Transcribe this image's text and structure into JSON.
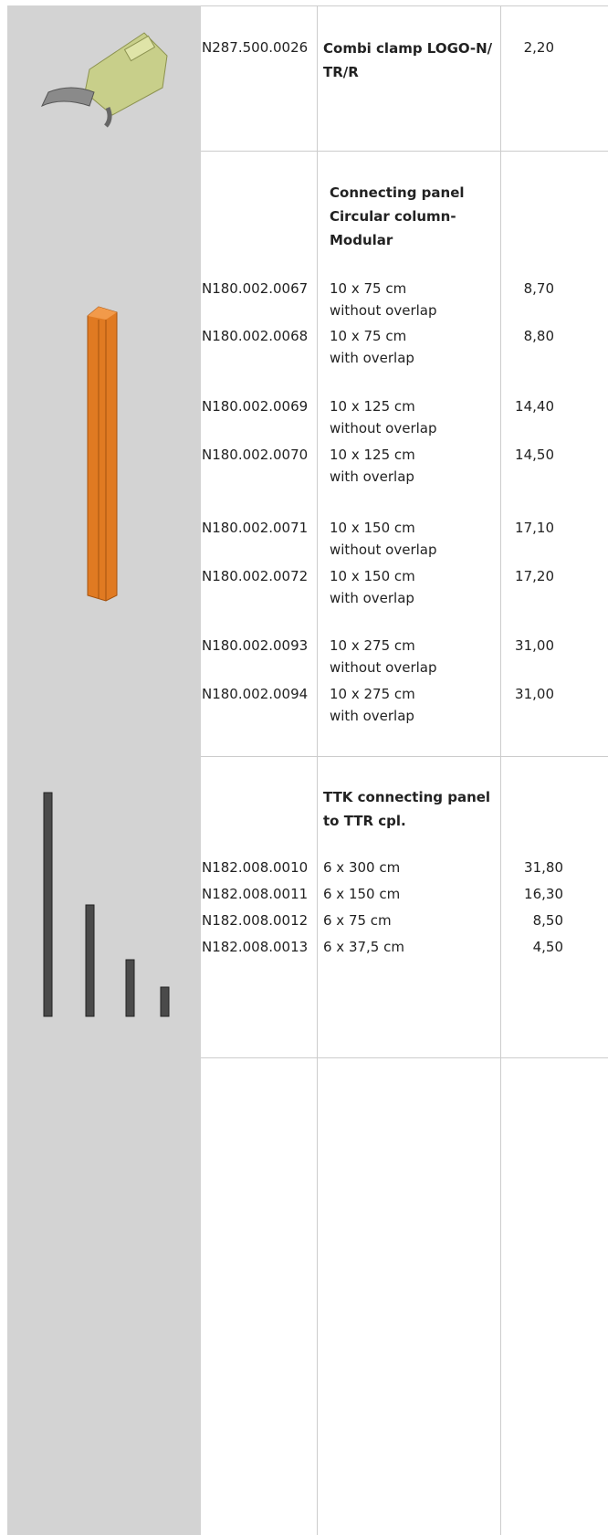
{
  "sections": [
    {
      "heading": [],
      "rows": [
        {
          "code": "N287.500.0026",
          "description": [
            "Combi clamp LOGO-N/",
            "TR/R"
          ],
          "weight": "2,20"
        }
      ]
    },
    {
      "heading": [
        "Connecting panel",
        "Circular column-",
        "Modular"
      ],
      "rows": [
        {
          "code": "N180.002.0067",
          "description": [
            "10 x 75 cm",
            "without overlap"
          ],
          "weight": "8,70"
        },
        {
          "code": "N180.002.0068",
          "description": [
            "10 x 75 cm",
            "with overlap"
          ],
          "weight": "8,80"
        },
        {
          "code": "N180.002.0069",
          "description": [
            "10 x 125 cm",
            "without overlap"
          ],
          "weight": "14,40"
        },
        {
          "code": "N180.002.0070",
          "description": [
            "10 x 125 cm",
            "with overlap"
          ],
          "weight": "14,50"
        },
        {
          "code": "N180.002.0071",
          "description": [
            "10 x 150 cm",
            "without overlap"
          ],
          "weight": "17,10"
        },
        {
          "code": "N180.002.0072",
          "description": [
            "10 x 150 cm",
            "with overlap"
          ],
          "weight": "17,20"
        },
        {
          "code": "N180.002.0093",
          "description": [
            "10 x 275 cm",
            "without overlap"
          ],
          "weight": "31,00"
        },
        {
          "code": "N180.002.0094",
          "description": [
            "10 x 275 cm",
            "with overlap"
          ],
          "weight": "31,00"
        }
      ]
    },
    {
      "heading": [
        "TTK connecting panel",
        "to TTR cpl."
      ],
      "rows": [
        {
          "code": "N182.008.0010",
          "description": [
            "6 x 300 cm"
          ],
          "weight": "31,80"
        },
        {
          "code": "N182.008.0011",
          "description": [
            "6 x 150 cm"
          ],
          "weight": "16,30"
        },
        {
          "code": "N182.008.0012",
          "description": [
            "6 x 75 cm"
          ],
          "weight": "8,50"
        },
        {
          "code": "N182.008.0013",
          "description": [
            "6 x 37,5 cm"
          ],
          "weight": "4,50"
        }
      ]
    }
  ]
}
